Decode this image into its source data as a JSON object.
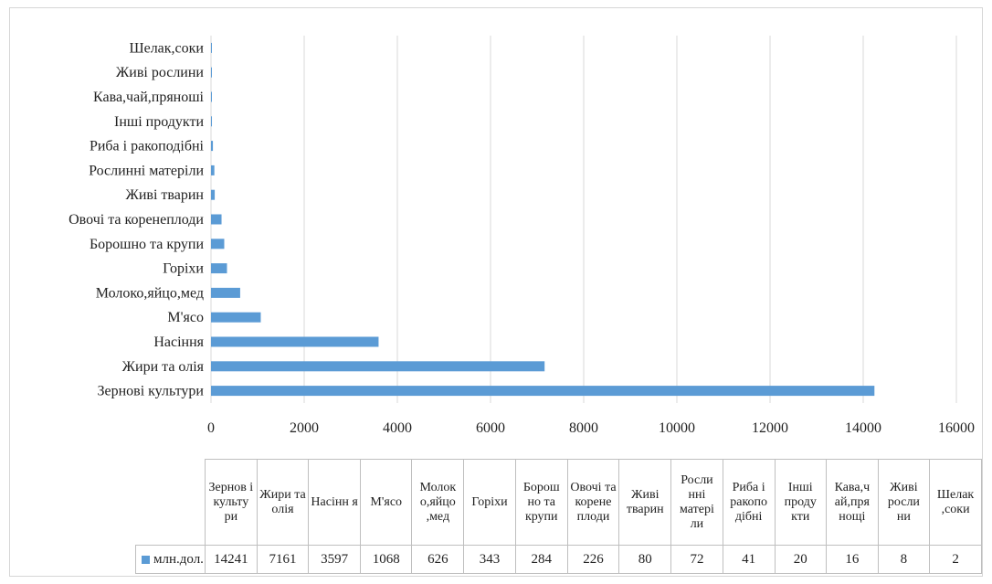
{
  "chart_data": {
    "type": "bar",
    "orientation": "horizontal",
    "categories": [
      "Зернові культури",
      "Жири та олія",
      "Насіння",
      "М'ясо",
      "Молоко,яйцо,мед",
      "Горіхи",
      "Борошно та крупи",
      "Овочі та коренеплоди",
      "Живі тварин",
      "Рослинні матеріли",
      "Риба і ракоподібні",
      "Інші продукти",
      "Кава,чай,пряноші",
      "Живі рослини",
      "Шелак,соки"
    ],
    "table_headers": [
      "Зернов і культу ри",
      "Жири та олія",
      "Насінн я",
      "М'ясо",
      "Молок о,яйцо ,мед",
      "Горіхи",
      "Борош но та крупи",
      "Овочі та корене плоди",
      "Живі тварин",
      "Росли нні матері ли",
      "Риба і ракопо дібні",
      "Інші проду кти",
      "Кава,ч ай,пря нощі",
      "Живі росли ни",
      "Шелак ,соки"
    ],
    "series": [
      {
        "name": "млн.дол.",
        "values": [
          14241,
          7161,
          3597,
          1068,
          626,
          343,
          284,
          226,
          80,
          72,
          41,
          20,
          16,
          8,
          2
        ]
      }
    ],
    "x_ticks": [
      "0",
      "2000",
      "4000",
      "6000",
      "8000",
      "10000",
      "12000",
      "14000",
      "16000"
    ],
    "xlim": [
      0,
      16000
    ],
    "grid": "vertical",
    "data_table": true,
    "colors": {
      "bar": "#5b9bd5"
    }
  }
}
